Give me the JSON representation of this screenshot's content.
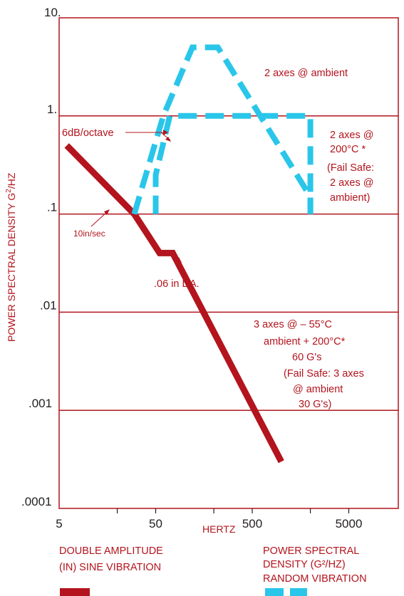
{
  "chart_data": {
    "type": "line",
    "x_scale": "log",
    "y_scale": "log",
    "xlim": [
      5,
      20000
    ],
    "ylim": [
      0.0001,
      10
    ],
    "grid": "horizontal",
    "xlabel": "HERTZ",
    "ylabel_main": "POWER SPECTRAL DENSITY G",
    "ylabel_sup": "2",
    "ylabel_end": "/HZ",
    "x_ticks": [
      "5",
      "50",
      "500",
      "5000"
    ],
    "y_ticks": [
      "10.",
      "1.",
      ".1",
      ".01",
      ".001",
      ".0001"
    ],
    "series": [
      {
        "legend": [
          "DOUBLE AMPLITUDE",
          "(IN) SINE VIBRATION"
        ],
        "style": "solid",
        "color": "#b3141d",
        "x": [
          6,
          20,
          30,
          55,
          75,
          1000
        ],
        "y": [
          0.5,
          0.15,
          0.1,
          0.04,
          0.04,
          0.0003
        ]
      },
      {
        "legend": [
          "POWER SPECTRAL",
          "DENSITY (G²/HZ)",
          "RANDOM VIBRATION"
        ],
        "style": "dashed",
        "color": "#29c6ea",
        "x": [
          30,
          60,
          120,
          220,
          2000,
          2000
        ],
        "y": [
          0.1,
          1,
          5,
          5,
          0.15,
          0.1
        ]
      },
      {
        "style": "dashed",
        "color": "#29c6ea",
        "x": [
          50,
          50,
          70,
          2000,
          2000
        ],
        "y": [
          0.1,
          0.25,
          1,
          1,
          0.1
        ]
      }
    ],
    "annotations": {
      "six_db": "6dB/octave",
      "ten_in": "10in/sec",
      "da": ".06 in DA.",
      "ambient2": "2 axes  @  ambient",
      "axes200": [
        "2 axes @",
        "200°C *",
        "(Fail Safe:",
        "2 axes @",
        "ambient)"
      ],
      "axes3": [
        "3 axes @   – 55°C",
        "ambient + 200°C*",
        "60 G's",
        "(Fail Safe: 3 axes",
        "@ ambient",
        "30 G's)"
      ]
    }
  }
}
